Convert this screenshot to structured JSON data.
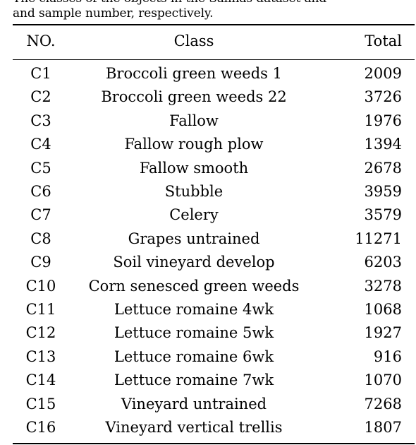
{
  "caption": {
    "line1_partial": "The classes of the objects in the Salinas dataset and",
    "line2": "and sample number, respectively."
  },
  "table": {
    "headers": {
      "no": "NO.",
      "class": "Class",
      "total": "Total"
    },
    "rows": [
      {
        "no": "C1",
        "class": "Broccoli green weeds 1",
        "total": "2009"
      },
      {
        "no": "C2",
        "class": "Broccoli green weeds 22",
        "total": "3726"
      },
      {
        "no": "C3",
        "class": "Fallow",
        "total": "1976"
      },
      {
        "no": "C4",
        "class": "Fallow rough plow",
        "total": "1394"
      },
      {
        "no": "C5",
        "class": "Fallow smooth",
        "total": "2678"
      },
      {
        "no": "C6",
        "class": "Stubble",
        "total": "3959"
      },
      {
        "no": "C7",
        "class": "Celery",
        "total": "3579"
      },
      {
        "no": "C8",
        "class": "Grapes untrained",
        "total": "11271"
      },
      {
        "no": "C9",
        "class": "Soil vineyard develop",
        "total": "6203"
      },
      {
        "no": "C10",
        "class": "Corn senesced green weeds",
        "total": "3278"
      },
      {
        "no": "C11",
        "class": "Lettuce romaine 4wk",
        "total": "1068"
      },
      {
        "no": "C12",
        "class": "Lettuce romaine 5wk",
        "total": "1927"
      },
      {
        "no": "C13",
        "class": "Lettuce romaine 6wk",
        "total": "916"
      },
      {
        "no": "C14",
        "class": "Lettuce romaine 7wk",
        "total": "1070"
      },
      {
        "no": "C15",
        "class": "Vineyard untrained",
        "total": "7268"
      },
      {
        "no": "C16",
        "class": "Vineyard vertical trellis",
        "total": "1807"
      }
    ]
  }
}
